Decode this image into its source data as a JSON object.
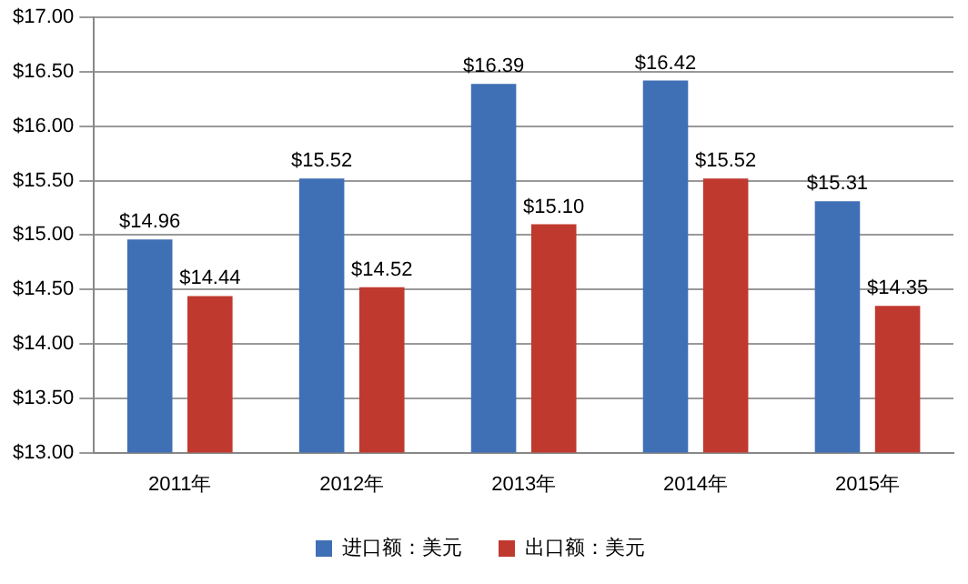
{
  "chart_data": {
    "type": "bar",
    "categories": [
      "2011年",
      "2012年",
      "2013年",
      "2014年",
      "2015年"
    ],
    "series": [
      {
        "name": "进口额：美元",
        "color": "#3f6fb5",
        "values": [
          14.96,
          15.52,
          16.39,
          16.42,
          15.31
        ],
        "value_labels": [
          "$14.96",
          "$15.52",
          "$16.39",
          "$16.42",
          "$15.31"
        ]
      },
      {
        "name": "出口额：美元",
        "color": "#c0392f",
        "values": [
          14.44,
          14.52,
          15.1,
          15.52,
          14.35
        ],
        "value_labels": [
          "$14.44",
          "$14.52",
          "$15.10",
          "$15.52",
          "$14.35"
        ]
      }
    ],
    "ylim": [
      13,
      17
    ],
    "yticks": [
      {
        "value": 13,
        "label": "$13.00"
      },
      {
        "value": 13.5,
        "label": "$13.50"
      },
      {
        "value": 14,
        "label": "$14.00"
      },
      {
        "value": 14.5,
        "label": "$14.50"
      },
      {
        "value": 15,
        "label": "$15.00"
      },
      {
        "value": 15.5,
        "label": "$15.50"
      },
      {
        "value": 16,
        "label": "$16.00"
      },
      {
        "value": 16.5,
        "label": "$16.50"
      },
      {
        "value": 17,
        "label": "$17.00"
      }
    ],
    "grid": "y",
    "legend": "bottom"
  }
}
